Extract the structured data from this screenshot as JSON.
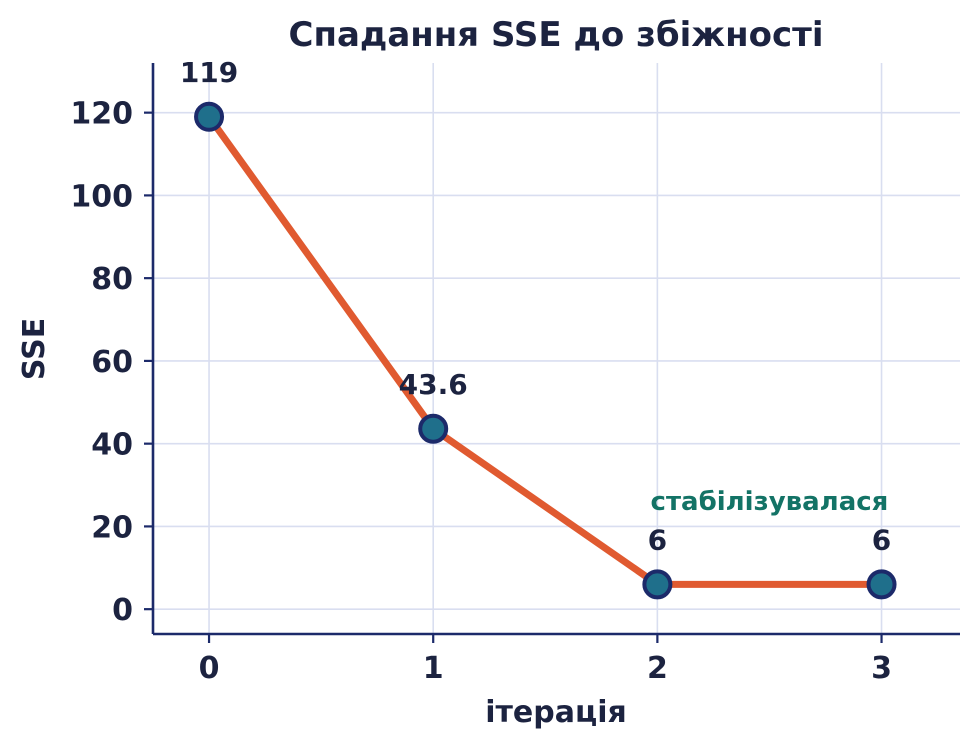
{
  "chart_data": {
    "type": "line",
    "title": "Спадання SSE до збіжності",
    "xlabel": "ітерація",
    "ylabel": "SSE",
    "x": [
      0,
      1,
      2,
      3
    ],
    "series": [
      {
        "values": [
          119,
          43.6,
          6,
          6
        ]
      }
    ],
    "data_labels": [
      "119",
      "43.6",
      "6",
      "6"
    ],
    "x_ticks": [
      "0",
      "1",
      "2",
      "3"
    ],
    "y_ticks": [
      "0",
      "20",
      "40",
      "60",
      "80",
      "100",
      "120"
    ],
    "xlim": [
      -0.25,
      3.35
    ],
    "ylim": [
      -6,
      132
    ],
    "grid": true,
    "annotations": [
      {
        "text": "стабілізувалася",
        "x": 2.5,
        "y": 24
      }
    ],
    "colors": {
      "line": "#e05a30",
      "marker_fill": "#1f6f8b",
      "marker_edge": "#1c2a6a",
      "annotation": "#137366",
      "text": "#1c2340"
    }
  }
}
